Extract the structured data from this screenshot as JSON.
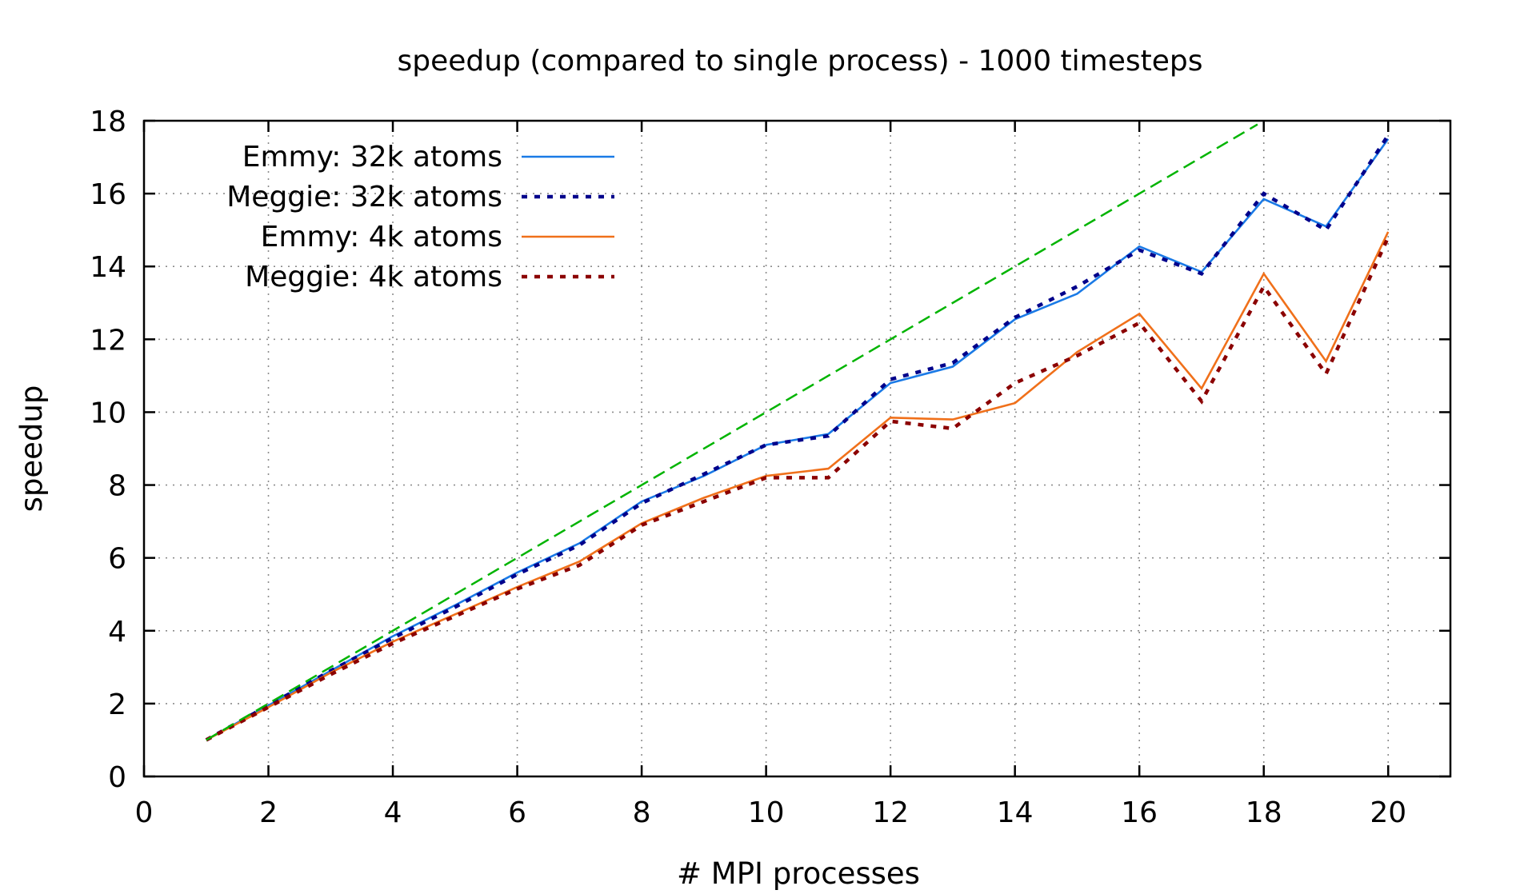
{
  "chart_data": {
    "type": "line",
    "title": "speedup (compared to single process) - 1000 timesteps",
    "xlabel": "# MPI processes",
    "ylabel": "speedup",
    "xlim": [
      0,
      21
    ],
    "ylim": [
      0,
      18
    ],
    "xticks": [
      0,
      2,
      4,
      6,
      8,
      10,
      12,
      14,
      16,
      18,
      20
    ],
    "yticks": [
      0,
      2,
      4,
      6,
      8,
      10,
      12,
      14,
      16,
      18
    ],
    "grid": true,
    "legend_position": "top-left",
    "x": [
      1,
      2,
      3,
      4,
      5,
      6,
      7,
      8,
      9,
      10,
      11,
      12,
      13,
      14,
      15,
      16,
      17,
      18,
      19,
      20
    ],
    "series": [
      {
        "name": "Emmy: 32k atoms",
        "color": "#1a7ae6",
        "style": "solid",
        "values": [
          1.0,
          1.95,
          2.9,
          3.85,
          4.7,
          5.6,
          6.4,
          7.55,
          8.25,
          9.1,
          9.4,
          10.8,
          11.25,
          12.55,
          13.25,
          14.55,
          13.85,
          15.85,
          15.1,
          17.5
        ]
      },
      {
        "name": "Meggie: 32k atoms",
        "color": "#00008b",
        "style": "dotted",
        "values": [
          1.0,
          1.95,
          2.9,
          3.8,
          4.65,
          5.55,
          6.35,
          7.5,
          8.3,
          9.1,
          9.35,
          10.9,
          11.35,
          12.6,
          13.45,
          14.45,
          13.8,
          16.0,
          15.0,
          17.6
        ]
      },
      {
        "name": "Emmy:   4k atoms",
        "color": "#f0701a",
        "style": "solid",
        "values": [
          1.0,
          1.9,
          2.85,
          3.7,
          4.45,
          5.2,
          5.9,
          6.95,
          7.65,
          8.25,
          8.45,
          9.85,
          9.8,
          10.25,
          11.65,
          12.7,
          10.65,
          13.8,
          11.4,
          14.95
        ]
      },
      {
        "name": "Meggie:   4k atoms",
        "color": "#8b0000",
        "style": "dotted",
        "values": [
          1.0,
          1.9,
          2.8,
          3.65,
          4.4,
          5.15,
          5.8,
          6.9,
          7.55,
          8.2,
          8.2,
          9.75,
          9.55,
          10.8,
          11.55,
          12.45,
          10.3,
          13.45,
          11.05,
          14.8
        ]
      },
      {
        "name": "",
        "color": "#00b400",
        "style": "dashed",
        "in_legend": false,
        "x": [
          1,
          17.9
        ],
        "values": [
          1,
          17.9
        ]
      }
    ]
  }
}
